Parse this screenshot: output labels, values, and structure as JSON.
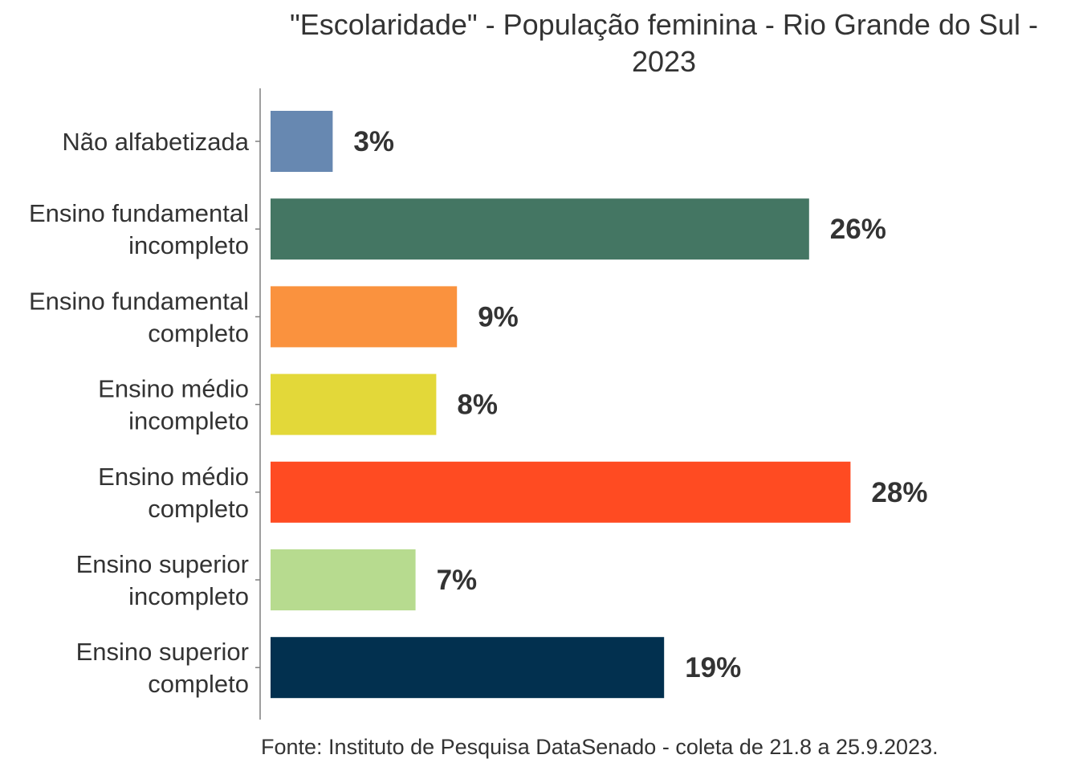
{
  "chart_data": {
    "type": "bar",
    "orientation": "horizontal",
    "title_lines": [
      "\"Escolaridade\" - População feminina - Rio Grande do Sul -",
      "2023"
    ],
    "categories": [
      [
        "Não alfabetizada"
      ],
      [
        "Ensino fundamental",
        "incompleto"
      ],
      [
        "Ensino fundamental",
        "completo"
      ],
      [
        "Ensino médio",
        "incompleto"
      ],
      [
        "Ensino médio",
        "completo"
      ],
      [
        "Ensino superior",
        "incompleto"
      ],
      [
        "Ensino superior",
        "completo"
      ]
    ],
    "values": [
      3,
      26,
      9,
      8,
      28,
      7,
      19
    ],
    "value_labels": [
      "3%",
      "26%",
      "9%",
      "8%",
      "28%",
      "7%",
      "19%"
    ],
    "colors": [
      "#6788b1",
      "#447663",
      "#fa923e",
      "#e3d839",
      "#ff4b22",
      "#b7db8f",
      "#02304f"
    ],
    "xlabel": "",
    "ylabel": "",
    "xlim": [
      0,
      28
    ],
    "grid": false,
    "legend": "none",
    "source": "Fonte: Instituto de Pesquisa DataSenado - coleta de 21.8 a 25.9.2023."
  }
}
